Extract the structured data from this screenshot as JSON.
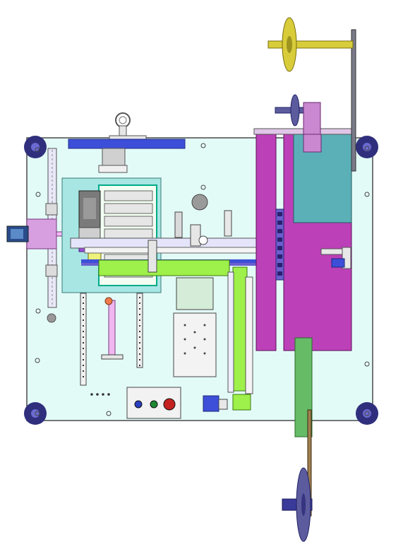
{
  "colors": {
    "background": "#ffffff",
    "base_plate": "#e3fbf7",
    "outline": "#4a4a4a",
    "foot": "#2f2f7d",
    "foot_highlight": "#6a6ad0",
    "reel_yellow": "#d8cc3a",
    "reel_yellow_dark": "#9c9320",
    "reel_blue": "#5b5b9e",
    "reel_blue_dark": "#343480",
    "magenta_block": "#bc40b8",
    "teal_block": "#5bb0b8",
    "lavender": "#c988d0",
    "green_panel": "#66bb66",
    "lime": "#9ef04a",
    "blue_bar": "#3d4fd8",
    "purple_bar": "#6a5fcf",
    "tray_cyan": "#a8e6e3",
    "grey_part": "#c8c8c8",
    "light_grey": "#eeeeee",
    "red_button": "#c42020",
    "green_button": "#1e8a32",
    "blue_button": "#2a3fc0"
  },
  "icons": {
    "reels": [
      "top-yellow-reel-icon",
      "top-blue-reel-icon",
      "bottom-blue-reel-icon"
    ],
    "feet": [
      "foot-top-left-icon",
      "foot-top-right-icon",
      "foot-bottom-left-icon",
      "foot-bottom-right-icon"
    ],
    "buttons": [
      "control-button-blue-icon",
      "control-button-green-icon",
      "emergency-stop-red-icon"
    ]
  }
}
